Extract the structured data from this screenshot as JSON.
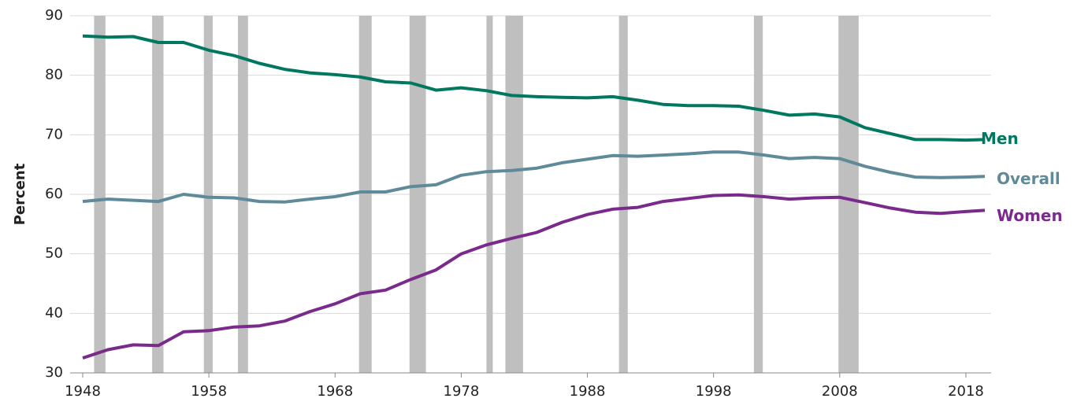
{
  "chart_data": {
    "type": "line",
    "x": [
      1948,
      1950,
      1952,
      1954,
      1956,
      1958,
      1960,
      1962,
      1964,
      1966,
      1968,
      1970,
      1972,
      1974,
      1976,
      1978,
      1980,
      1982,
      1984,
      1986,
      1988,
      1990,
      1992,
      1994,
      1996,
      1998,
      2000,
      2002,
      2004,
      2006,
      2008,
      2010,
      2012,
      2014,
      2016,
      2018,
      2019.5
    ],
    "series": [
      {
        "name": "Men",
        "color": "#00775f",
        "values": [
          86.6,
          86.4,
          86.5,
          85.5,
          85.5,
          84.2,
          83.3,
          82.0,
          81.0,
          80.4,
          80.1,
          79.7,
          78.9,
          78.7,
          77.5,
          77.9,
          77.4,
          76.6,
          76.4,
          76.3,
          76.2,
          76.4,
          75.8,
          75.1,
          74.9,
          74.9,
          74.8,
          74.1,
          73.3,
          73.5,
          73.0,
          71.2,
          70.2,
          69.2,
          69.2,
          69.1,
          69.2
        ]
      },
      {
        "name": "Overall",
        "color": "#5f8a99",
        "values": [
          58.8,
          59.2,
          59.0,
          58.8,
          60.0,
          59.5,
          59.4,
          58.8,
          58.7,
          59.2,
          59.6,
          60.4,
          60.4,
          61.3,
          61.6,
          63.2,
          63.8,
          64.0,
          64.4,
          65.3,
          65.9,
          66.5,
          66.4,
          66.6,
          66.8,
          67.1,
          67.1,
          66.6,
          66.0,
          66.2,
          66.0,
          64.7,
          63.7,
          62.9,
          62.8,
          62.9,
          63.0
        ]
      },
      {
        "name": "Women",
        "color": "#7a2a8a",
        "values": [
          32.5,
          33.9,
          34.7,
          34.6,
          36.9,
          37.1,
          37.7,
          37.9,
          38.7,
          40.3,
          41.6,
          43.3,
          43.9,
          45.7,
          47.3,
          50.0,
          51.5,
          52.6,
          53.6,
          55.3,
          56.6,
          57.5,
          57.8,
          58.8,
          59.3,
          59.8,
          59.9,
          59.6,
          59.2,
          59.4,
          59.5,
          58.6,
          57.7,
          57.0,
          56.8,
          57.1,
          57.3
        ]
      }
    ],
    "recessions": [
      [
        1948.9,
        1949.8
      ],
      [
        1953.5,
        1954.4
      ],
      [
        1957.6,
        1958.3
      ],
      [
        1960.3,
        1961.1
      ],
      [
        1969.9,
        1970.9
      ],
      [
        1973.9,
        1975.2
      ],
      [
        1980.0,
        1980.5
      ],
      [
        1981.5,
        1982.9
      ],
      [
        1990.5,
        1991.2
      ],
      [
        2001.2,
        2001.9
      ],
      [
        2007.9,
        2009.5
      ]
    ],
    "recession_color": "#bfbfbf",
    "y_label": "Percent",
    "xlim": [
      1947,
      2020
    ],
    "xticks": [
      1948,
      1958,
      1968,
      1978,
      1988,
      1998,
      2008,
      2018
    ],
    "ylim": [
      30,
      90
    ],
    "yticks": [
      30,
      40,
      50,
      60,
      70,
      80,
      90
    ],
    "grid": true
  }
}
